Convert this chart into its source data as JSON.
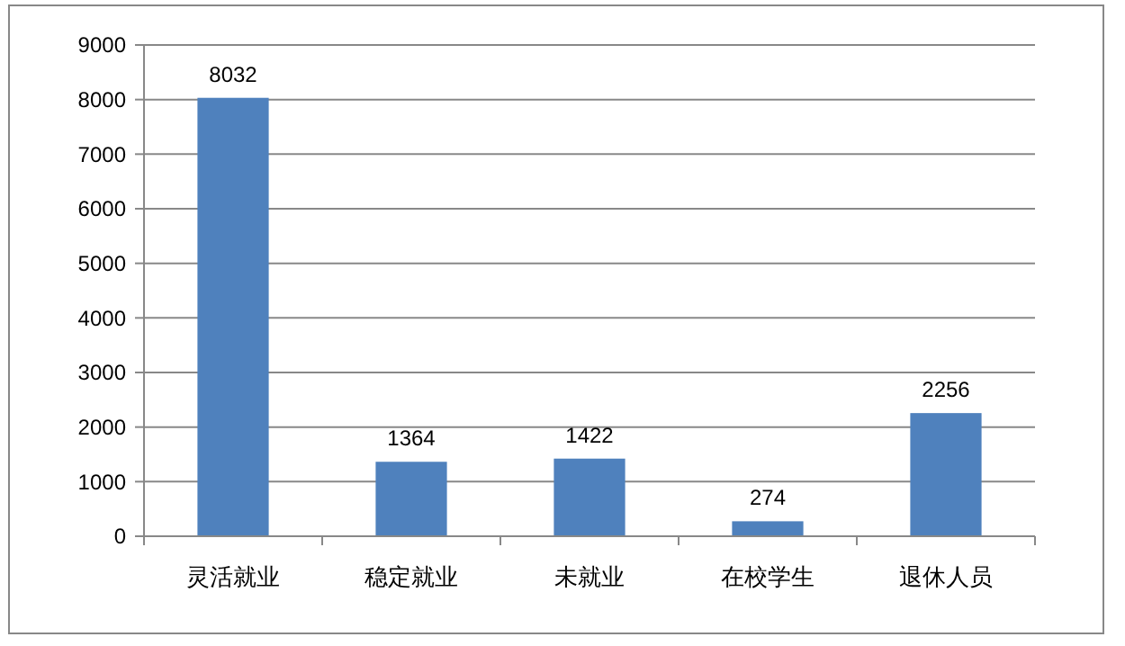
{
  "chart_data": {
    "type": "bar",
    "categories": [
      "灵活就业",
      "稳定就业",
      "未就业",
      "在校学生",
      "退休人员"
    ],
    "values": [
      8032,
      1364,
      1422,
      274,
      2256
    ],
    "color": "#4f81bd",
    "ylim": [
      0,
      9000
    ],
    "yticks": [
      0,
      1000,
      2000,
      3000,
      4000,
      5000,
      6000,
      7000,
      8000,
      9000
    ],
    "grid": "y",
    "data_labels": true
  }
}
